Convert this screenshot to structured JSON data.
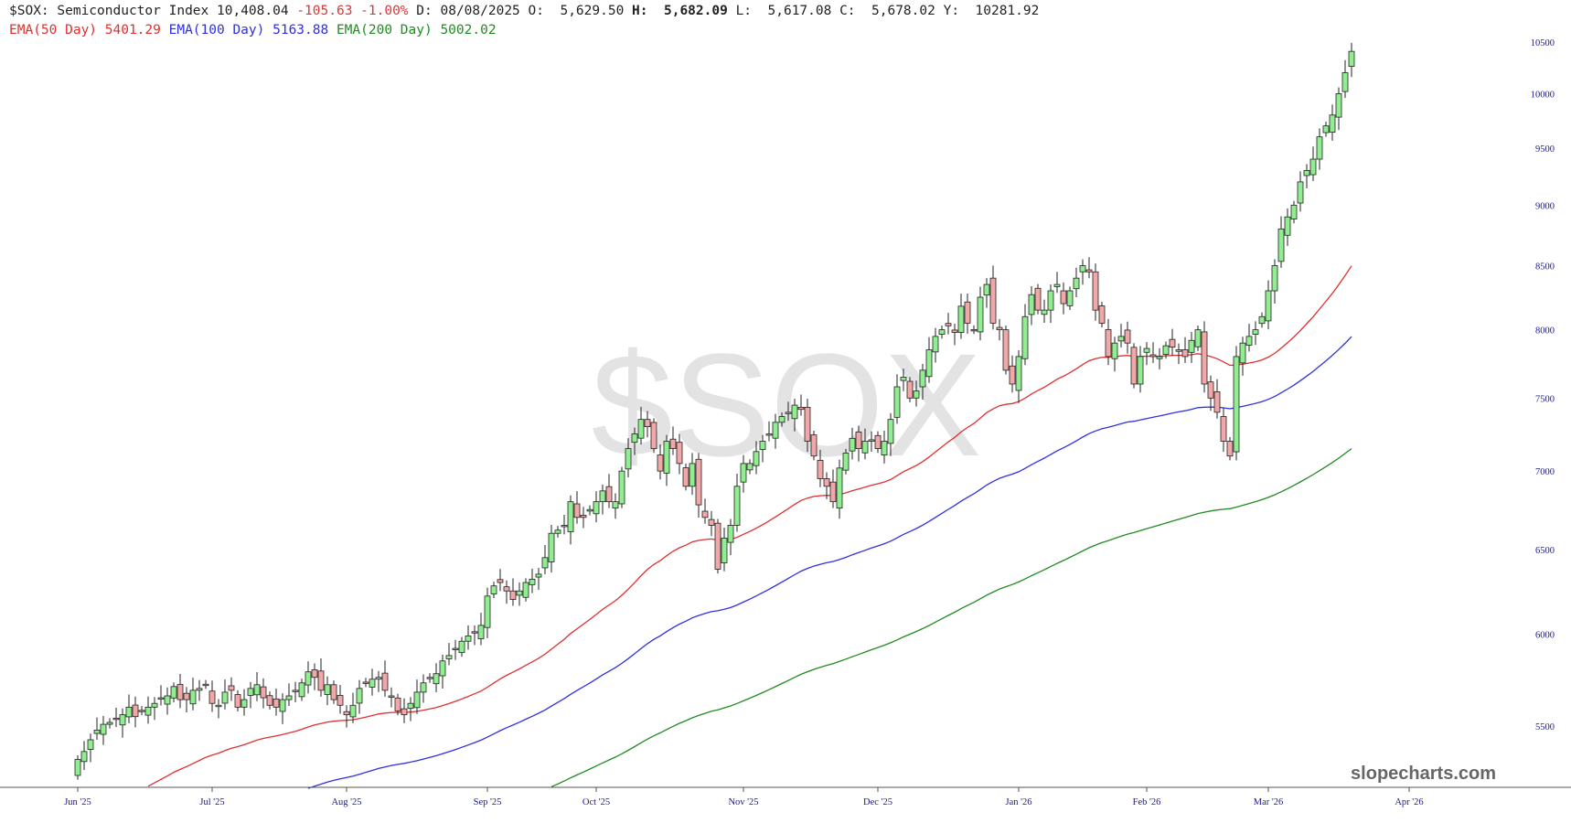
{
  "header": {
    "symbol": "$SOX:",
    "name": "Semiconductor Index",
    "last": "10,408.04",
    "change": "-105.63",
    "change_pct": "-1.00%",
    "date_label": "D:",
    "date": "08/08/2025",
    "open_label": "O:",
    "open": "5,629.50",
    "high_label": "H:",
    "high": "5,682.09",
    "low_label": "L:",
    "low": "5,617.08",
    "close_label": "C:",
    "close": "5,678.02",
    "y_label": "Y:",
    "y_value": "10281.92"
  },
  "ema": {
    "ema50_label": "EMA(50 Day)",
    "ema50_value": "5401.29",
    "ema100_label": "EMA(100 Day)",
    "ema100_value": "5163.88",
    "ema200_label": "EMA(200 Day)",
    "ema200_value": "5002.02"
  },
  "watermark": "$SOX",
  "brand": "slopecharts.com",
  "colors": {
    "up_fill": "#90ee90",
    "down_fill": "#f2a8a8",
    "ema50": "#e03030",
    "ema100": "#3030e0",
    "ema200": "#228b22",
    "axis_text": "#1a1a8c"
  },
  "chart_data": {
    "type": "candlestick",
    "y_scale": "log",
    "ylim": [
      5250,
      10600
    ],
    "y_ticks": [
      5500,
      6000,
      6500,
      7000,
      7500,
      8000,
      8500,
      9000,
      9500,
      10000,
      10500
    ],
    "x_ticks": [
      "Jun '25",
      "Jul '25",
      "Aug '25",
      "Sep '25",
      "Oct '25",
      "Nov '25",
      "Dec '25",
      "Jan '26",
      "Feb '26",
      "Mar '26",
      "Apr '26"
    ],
    "x_tick_positions": [
      0,
      21,
      42,
      64,
      81,
      104,
      125,
      147,
      167,
      186,
      208
    ],
    "candles_approx_close": [
      5330,
      5370,
      5430,
      5480,
      5510,
      5520,
      5540,
      5560,
      5600,
      5550,
      5580,
      5600,
      5620,
      5650,
      5660,
      5710,
      5640,
      5640,
      5690,
      5700,
      5720,
      5620,
      5610,
      5680,
      5690,
      5600,
      5640,
      5700,
      5720,
      5650,
      5610,
      5600,
      5640,
      5660,
      5690,
      5730,
      5790,
      5760,
      5690,
      5720,
      5640,
      5610,
      5560,
      5610,
      5700,
      5730,
      5750,
      5760,
      5690,
      5660,
      5580,
      5560,
      5620,
      5680,
      5730,
      5760,
      5780,
      5850,
      5880,
      5920,
      5960,
      5990,
      6010,
      6050,
      6220,
      6280,
      6300,
      6250,
      6200,
      6250,
      6300,
      6320,
      6350,
      6450,
      6600,
      6620,
      6650,
      6800,
      6700,
      6700,
      6750,
      6800,
      6870,
      6800,
      6800,
      7000,
      7150,
      7250,
      7350,
      7300,
      7150,
      7000,
      7200,
      7150,
      7050,
      6900,
      7050,
      6780,
      6700,
      6650,
      6380,
      6570,
      6650,
      6900,
      7050,
      7050,
      7130,
      7200,
      7250,
      7330,
      7370,
      7400,
      7450,
      7420,
      7200,
      7100,
      6950,
      6900,
      6800,
      7020,
      7120,
      7220,
      7150,
      7200,
      7210,
      7150,
      7200,
      7350,
      7580,
      7650,
      7500,
      7550,
      7700,
      7850,
      7950,
      8000,
      8030,
      7980,
      8180,
      8050,
      8000,
      8250,
      8350,
      8050,
      8000,
      7700,
      7600,
      7800,
      8100,
      8270,
      8150,
      8150,
      8300,
      8350,
      8200,
      8300,
      8400,
      8500,
      8450,
      8150,
      8050,
      7800,
      7900,
      7950,
      7900,
      7600,
      7800,
      7860,
      7800,
      7800,
      7880,
      7870,
      7850,
      7800,
      7920,
      8000,
      7600,
      7500,
      7400,
      7200,
      7100,
      7800,
      7900,
      7950,
      8000,
      8100,
      8300,
      8500,
      8800,
      8900,
      9000,
      9200,
      9300,
      9400,
      9600,
      9700,
      9800,
      10000,
      10200,
      10408
    ]
  }
}
